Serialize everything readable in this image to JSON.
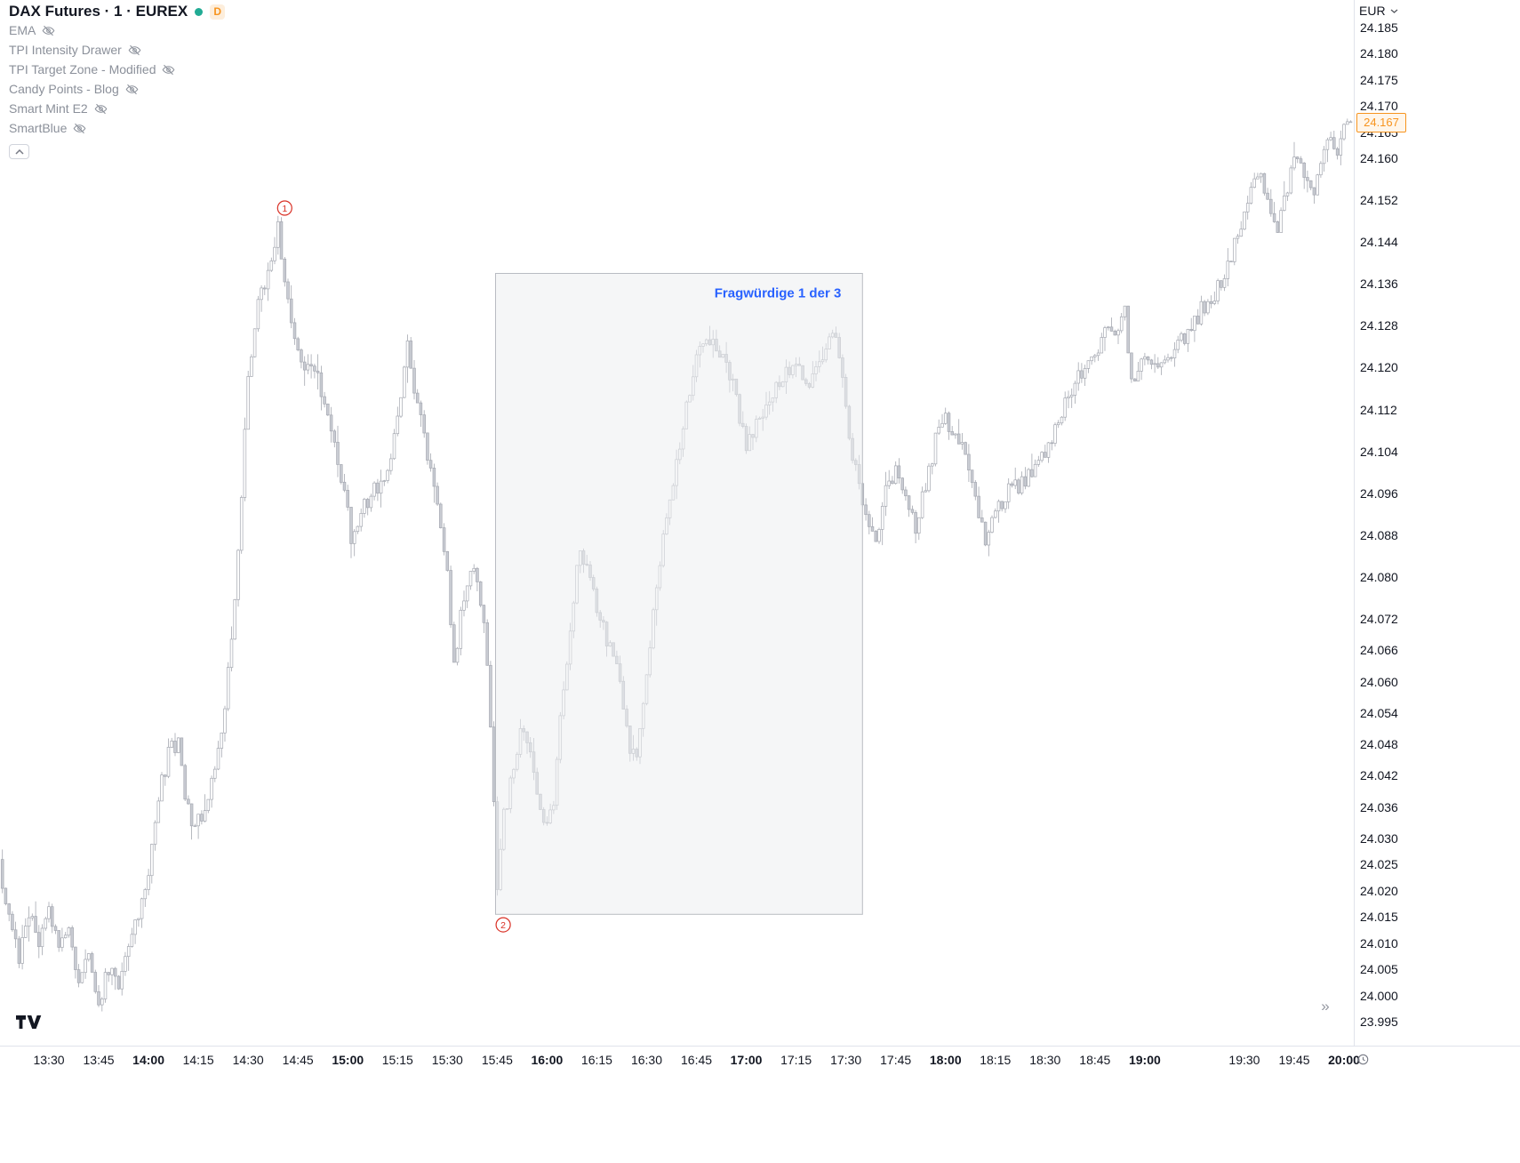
{
  "header": {
    "symbol_title": "DAX Futures · 1 · EUREX",
    "market_status_color": "#22ab94",
    "data_badge": "D",
    "data_badge_color": "#f7941e",
    "data_badge_bg": "#fdeedc"
  },
  "legend": {
    "indicators": [
      {
        "name": "EMA",
        "hidden": true
      },
      {
        "name": "TPI Intensity Drawer",
        "hidden": true
      },
      {
        "name": "TPI Target Zone - Modified",
        "hidden": true
      },
      {
        "name": "Candy Points - Blog",
        "hidden": true
      },
      {
        "name": "Smart Mint E2",
        "hidden": true
      },
      {
        "name": "SmartBlue",
        "hidden": true
      }
    ]
  },
  "price_axis": {
    "currency_label": "EUR",
    "labels": [
      "24.185",
      "24.180",
      "24.175",
      "24.170",
      "24.165",
      "24.160",
      "24.152",
      "24.144",
      "24.136",
      "24.128",
      "24.120",
      "24.112",
      "24.104",
      "24.096",
      "24.088",
      "24.080",
      "24.072",
      "24.066",
      "24.060",
      "24.054",
      "24.048",
      "24.042",
      "24.036",
      "24.030",
      "24.025",
      "24.020",
      "24.015",
      "24.010",
      "24.005",
      "24.000",
      "23.995"
    ],
    "last_price": "24.167",
    "last_price_color": "#f7941e",
    "last_price_bg": "#fff6ea"
  },
  "time_axis": {
    "minute_origin": "13:30",
    "labels": [
      {
        "text": "13:30",
        "minute": 0,
        "bold": false
      },
      {
        "text": "13:45",
        "minute": 15,
        "bold": false
      },
      {
        "text": "14:00",
        "minute": 30,
        "bold": true
      },
      {
        "text": "14:15",
        "minute": 45,
        "bold": false
      },
      {
        "text": "14:30",
        "minute": 60,
        "bold": false
      },
      {
        "text": "14:45",
        "minute": 75,
        "bold": false
      },
      {
        "text": "15:00",
        "minute": 90,
        "bold": true
      },
      {
        "text": "15:15",
        "minute": 105,
        "bold": false
      },
      {
        "text": "15:30",
        "minute": 120,
        "bold": false
      },
      {
        "text": "15:45",
        "minute": 135,
        "bold": false
      },
      {
        "text": "16:00",
        "minute": 150,
        "bold": true
      },
      {
        "text": "16:15",
        "minute": 165,
        "bold": false
      },
      {
        "text": "16:30",
        "minute": 180,
        "bold": false
      },
      {
        "text": "16:45",
        "minute": 195,
        "bold": false
      },
      {
        "text": "17:00",
        "minute": 210,
        "bold": true
      },
      {
        "text": "17:15",
        "minute": 225,
        "bold": false
      },
      {
        "text": "17:30",
        "minute": 240,
        "bold": false
      },
      {
        "text": "17:45",
        "minute": 255,
        "bold": false
      },
      {
        "text": "18:00",
        "minute": 270,
        "bold": true
      },
      {
        "text": "18:15",
        "minute": 285,
        "bold": false
      },
      {
        "text": "18:30",
        "minute": 300,
        "bold": false
      },
      {
        "text": "18:45",
        "minute": 315,
        "bold": false
      },
      {
        "text": "19:00",
        "minute": 330,
        "bold": true
      },
      {
        "text": "19:30",
        "minute": 360,
        "bold": false
      },
      {
        "text": "19:45",
        "minute": 375,
        "bold": false
      },
      {
        "text": "20:00",
        "minute": 390,
        "bold": true
      }
    ]
  },
  "footer": {
    "scroll_right_icon": "»"
  },
  "chart_data": {
    "type": "candlestick",
    "symbol": "DAX Futures",
    "interval": "1",
    "exchange": "EUREX",
    "currency": "EUR",
    "visible_price_range": [
      23.995,
      24.185
    ],
    "visible_time_range": [
      "13:16",
      "20:02"
    ],
    "last_price": 24.167,
    "candle_up_fill": "#ffffff",
    "candle_down_fill": "#c9ccd3",
    "candle_stroke": "#a5a8b1",
    "path_anchors": [
      [
        -14,
        24.026
      ],
      [
        -11,
        24.014
      ],
      [
        -8,
        24.007
      ],
      [
        -5,
        24.016
      ],
      [
        -2,
        24.01
      ],
      [
        1,
        24.018
      ],
      [
        4,
        24.008
      ],
      [
        7,
        24.013
      ],
      [
        10,
        24.003
      ],
      [
        13,
        24.009
      ],
      [
        16,
        23.999
      ],
      [
        19,
        24.005
      ],
      [
        22,
        24.002
      ],
      [
        25,
        24.01
      ],
      [
        28,
        24.016
      ],
      [
        31,
        24.022
      ],
      [
        34,
        24.038
      ],
      [
        37,
        24.046
      ],
      [
        40,
        24.049
      ],
      [
        42,
        24.038
      ],
      [
        45,
        24.032
      ],
      [
        48,
        24.036
      ],
      [
        51,
        24.042
      ],
      [
        54,
        24.056
      ],
      [
        57,
        24.076
      ],
      [
        59,
        24.095
      ],
      [
        61,
        24.118
      ],
      [
        64,
        24.132
      ],
      [
        67,
        24.138
      ],
      [
        70,
        24.147
      ],
      [
        72,
        24.138
      ],
      [
        75,
        24.126
      ],
      [
        78,
        24.118
      ],
      [
        81,
        24.121
      ],
      [
        84,
        24.112
      ],
      [
        87,
        24.104
      ],
      [
        90,
        24.097
      ],
      [
        92,
        24.087
      ],
      [
        95,
        24.092
      ],
      [
        99,
        24.097
      ],
      [
        103,
        24.099
      ],
      [
        106,
        24.112
      ],
      [
        109,
        24.124
      ],
      [
        112,
        24.113
      ],
      [
        115,
        24.103
      ],
      [
        118,
        24.094
      ],
      [
        121,
        24.08
      ],
      [
        123,
        24.064
      ],
      [
        126,
        24.076
      ],
      [
        129,
        24.082
      ],
      [
        132,
        24.072
      ],
      [
        134,
        24.052
      ],
      [
        136,
        24.02
      ],
      [
        138,
        24.034
      ],
      [
        141,
        24.044
      ],
      [
        144,
        24.052
      ],
      [
        147,
        24.042
      ],
      [
        150,
        24.032
      ],
      [
        153,
        24.038
      ],
      [
        156,
        24.06
      ],
      [
        159,
        24.075
      ],
      [
        161,
        24.086
      ],
      [
        164,
        24.08
      ],
      [
        167,
        24.072
      ],
      [
        170,
        24.066
      ],
      [
        173,
        24.06
      ],
      [
        176,
        24.048
      ],
      [
        178,
        24.044
      ],
      [
        181,
        24.062
      ],
      [
        184,
        24.078
      ],
      [
        187,
        24.092
      ],
      [
        190,
        24.102
      ],
      [
        193,
        24.112
      ],
      [
        196,
        24.122
      ],
      [
        199,
        24.127
      ],
      [
        202,
        24.124
      ],
      [
        205,
        24.121
      ],
      [
        208,
        24.114
      ],
      [
        211,
        24.105
      ],
      [
        214,
        24.109
      ],
      [
        217,
        24.112
      ],
      [
        220,
        24.116
      ],
      [
        223,
        24.119
      ],
      [
        226,
        24.121
      ],
      [
        229,
        24.117
      ],
      [
        232,
        24.12
      ],
      [
        235,
        24.124
      ],
      [
        238,
        24.127
      ],
      [
        241,
        24.112
      ],
      [
        244,
        24.1
      ],
      [
        247,
        24.092
      ],
      [
        250,
        24.088
      ],
      [
        253,
        24.096
      ],
      [
        256,
        24.1
      ],
      [
        259,
        24.094
      ],
      [
        262,
        24.09
      ],
      [
        265,
        24.098
      ],
      [
        268,
        24.106
      ],
      [
        271,
        24.11
      ],
      [
        274,
        24.108
      ],
      [
        277,
        24.102
      ],
      [
        280,
        24.094
      ],
      [
        283,
        24.087
      ],
      [
        286,
        24.092
      ],
      [
        289,
        24.096
      ],
      [
        292,
        24.097
      ],
      [
        295,
        24.099
      ],
      [
        298,
        24.101
      ],
      [
        301,
        24.103
      ],
      [
        304,
        24.109
      ],
      [
        307,
        24.113
      ],
      [
        310,
        24.117
      ],
      [
        313,
        24.12
      ],
      [
        316,
        24.122
      ],
      [
        319,
        24.127
      ],
      [
        322,
        24.127
      ],
      [
        325,
        24.131
      ],
      [
        327,
        24.117
      ],
      [
        331,
        24.121
      ],
      [
        334,
        24.122
      ],
      [
        337,
        24.12
      ],
      [
        340,
        24.123
      ],
      [
        343,
        24.126
      ],
      [
        346,
        24.129
      ],
      [
        349,
        24.132
      ],
      [
        352,
        24.134
      ],
      [
        355,
        24.137
      ],
      [
        358,
        24.143
      ],
      [
        361,
        24.15
      ],
      [
        364,
        24.156
      ],
      [
        366,
        24.158
      ],
      [
        368,
        24.151
      ],
      [
        371,
        24.146
      ],
      [
        374,
        24.154
      ],
      [
        376,
        24.161
      ],
      [
        379,
        24.156
      ],
      [
        382,
        24.154
      ],
      [
        385,
        24.16
      ],
      [
        387,
        24.164
      ],
      [
        389,
        24.162
      ],
      [
        392,
        24.167
      ]
    ],
    "annotations": {
      "box": {
        "label": "Fragwürdige 1 der 3",
        "label_color": "#2962ff",
        "time_start_min": 134.5,
        "time_end_min": 245,
        "price_top": 24.138,
        "price_bottom": 24.0155,
        "fill": "#eceef0",
        "fill_opacity": 0.55,
        "border": "#b9bcc2"
      },
      "marks": [
        {
          "number": "1",
          "minute": 71,
          "price": 24.1505,
          "color": "#d93025"
        },
        {
          "number": "2",
          "minute": 136.8,
          "price": 24.0135,
          "color": "#d93025"
        }
      ]
    }
  }
}
